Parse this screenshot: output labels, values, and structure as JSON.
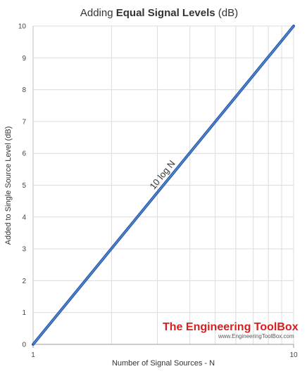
{
  "chart_data": {
    "type": "line",
    "title_prefix": "Adding ",
    "title_bold": "Equal Signal Levels",
    "title_suffix": " (dB)",
    "xlabel": "Number of Signal Sources - N",
    "ylabel": "Added to Single Source Level (dB)",
    "x_scale": "log",
    "xlim": [
      1,
      10
    ],
    "ylim": [
      0,
      10
    ],
    "x_ticks": [
      "1",
      "10"
    ],
    "y_ticks": [
      "0",
      "1",
      "2",
      "3",
      "4",
      "5",
      "6",
      "7",
      "8",
      "9",
      "10"
    ],
    "grid": true,
    "series": [
      {
        "line_label": "10 log N",
        "x": [
          1,
          2,
          3,
          4,
          5,
          6,
          7,
          8,
          9,
          10
        ],
        "y": [
          0,
          3.01,
          4.77,
          6.02,
          6.99,
          7.78,
          8.45,
          9.03,
          9.54,
          10
        ]
      }
    ],
    "line_color": "#2e5fac",
    "line_highlight": "#5b8fd6",
    "grid_color": "#dcdcdc"
  },
  "watermark": {
    "title": "The Engineering ToolBox",
    "url": "www.EngineeringToolBox.com",
    "title_color": "#d42020"
  }
}
